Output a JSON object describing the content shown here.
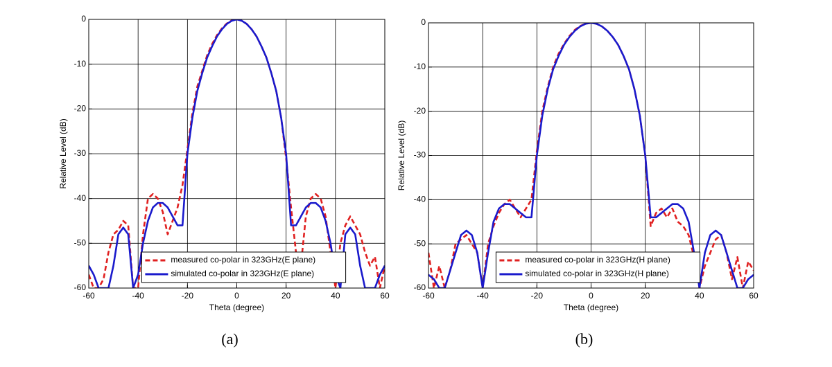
{
  "chart_data": [
    {
      "type": "line",
      "caption": "(a)",
      "xlabel": "Theta (degree)",
      "ylabel": "Relative Level (dB)",
      "x": [
        -60,
        -58,
        -56,
        -54,
        -52,
        -50,
        -48,
        -46,
        -44,
        -42,
        -40,
        -38,
        -36,
        -34,
        -32,
        -30,
        -28,
        -26,
        -24,
        -22,
        -20,
        -18,
        -16,
        -14,
        -12,
        -10,
        -8,
        -6,
        -4,
        -2,
        0,
        2,
        4,
        6,
        8,
        10,
        12,
        14,
        16,
        18,
        20,
        22,
        24,
        26,
        28,
        30,
        32,
        34,
        36,
        38,
        40,
        42,
        44,
        46,
        48,
        50,
        52,
        54,
        56,
        58,
        60
      ],
      "series": [
        {
          "name": "measured co-polar in 323GHz(E plane)",
          "color": "#e02020",
          "linestyle": "dashed",
          "values": [
            -57,
            -60,
            -60,
            -58,
            -52,
            -48,
            -47,
            -45,
            -46,
            -60,
            -60,
            -48,
            -40,
            -39,
            -40,
            -43,
            -48,
            -45,
            -42,
            -37,
            -29,
            -21,
            -15,
            -11.5,
            -8,
            -5.5,
            -3.5,
            -2,
            -0.9,
            -0.2,
            0,
            -0.3,
            -1,
            -2.2,
            -3.8,
            -6,
            -8.5,
            -12,
            -16,
            -22,
            -31,
            -42,
            -52,
            -55,
            -44,
            -40,
            -39,
            -40,
            -44,
            -52,
            -60,
            -50,
            -46,
            -44,
            -46,
            -48,
            -52,
            -55,
            -53,
            -60,
            -55
          ]
        },
        {
          "name": "simulated co-polar in 323GHz(E plane)",
          "color": "#1a1acc",
          "linestyle": "solid",
          "values": [
            -55,
            -57,
            -60,
            -60,
            -60,
            -55,
            -48,
            -46.5,
            -48,
            -60,
            -57,
            -50,
            -45,
            -42,
            -41,
            -41,
            -42,
            -44,
            -46,
            -46,
            -30,
            -22,
            -16,
            -12,
            -8.5,
            -6,
            -3.8,
            -2.2,
            -1,
            -0.3,
            0,
            -0.3,
            -1,
            -2.2,
            -3.8,
            -6,
            -8.5,
            -12,
            -16,
            -22,
            -30,
            -46,
            -46,
            -44,
            -42,
            -41,
            -41,
            -42,
            -45,
            -50,
            -57,
            -60,
            -48,
            -46.5,
            -48,
            -55,
            -60,
            -60,
            -60,
            -57,
            -55
          ]
        }
      ],
      "xlim": [
        -60,
        60
      ],
      "ylim": [
        -60,
        0
      ],
      "xticks": [
        -60,
        -40,
        -20,
        0,
        20,
        40,
        60
      ],
      "yticks": [
        0,
        -10,
        -20,
        -30,
        -40,
        -50,
        -60
      ],
      "grid": true,
      "legend": "lower center"
    },
    {
      "type": "line",
      "caption": "(b)",
      "xlabel": "Theta (degree)",
      "ylabel": "Relative Level (dB)",
      "x": [
        -60,
        -58,
        -56,
        -54,
        -52,
        -50,
        -48,
        -46,
        -44,
        -42,
        -40,
        -38,
        -36,
        -34,
        -32,
        -30,
        -28,
        -26,
        -24,
        -22,
        -20,
        -18,
        -16,
        -14,
        -12,
        -10,
        -8,
        -6,
        -4,
        -2,
        0,
        2,
        4,
        6,
        8,
        10,
        12,
        14,
        16,
        18,
        20,
        22,
        24,
        26,
        28,
        30,
        32,
        34,
        36,
        38,
        40,
        42,
        44,
        46,
        48,
        50,
        52,
        54,
        56,
        58,
        60
      ],
      "series": [
        {
          "name": "measured co-polar in 323GHz(H plane)",
          "color": "#e02020",
          "linestyle": "dashed",
          "values": [
            -52,
            -60,
            -55,
            -60,
            -56,
            -50,
            -49,
            -48,
            -50,
            -52,
            -60,
            -50,
            -46,
            -43,
            -41,
            -40,
            -42,
            -44,
            -42,
            -40,
            -29,
            -20,
            -14.5,
            -10,
            -7,
            -4.8,
            -3,
            -1.6,
            -0.7,
            -0.2,
            0,
            -0.2,
            -0.8,
            -1.8,
            -3.2,
            -5,
            -7.5,
            -10.5,
            -15,
            -21,
            -30,
            -46,
            -43,
            -42,
            -44,
            -42,
            -45,
            -46,
            -48,
            -53,
            -60,
            -55,
            -52,
            -49,
            -48,
            -52,
            -58,
            -53,
            -60,
            -54,
            -56
          ]
        },
        {
          "name": "simulated co-polar in 323GHz(H plane)",
          "color": "#1a1acc",
          "linestyle": "solid",
          "values": [
            -57,
            -58,
            -60,
            -60,
            -56,
            -52,
            -48,
            -47,
            -48,
            -52,
            -60,
            -52,
            -45,
            -42,
            -41,
            -41,
            -42,
            -43,
            -44,
            -44,
            -30,
            -21,
            -15,
            -10.5,
            -7.5,
            -5,
            -3.2,
            -1.8,
            -0.8,
            -0.2,
            0,
            -0.2,
            -0.8,
            -1.8,
            -3.2,
            -5,
            -7.5,
            -10.5,
            -15,
            -21,
            -30,
            -44,
            -44,
            -43,
            -42,
            -41,
            -41,
            -42,
            -45,
            -52,
            -60,
            -52,
            -48,
            -47,
            -48,
            -52,
            -56,
            -60,
            -60,
            -58,
            -57
          ]
        }
      ],
      "xlim": [
        -60,
        60
      ],
      "ylim": [
        -60,
        0
      ],
      "xticks": [
        -60,
        -40,
        -20,
        0,
        20,
        40,
        60
      ],
      "yticks": [
        0,
        -10,
        -20,
        -30,
        -40,
        -50,
        -60
      ],
      "grid": true,
      "legend": "lower center"
    }
  ]
}
